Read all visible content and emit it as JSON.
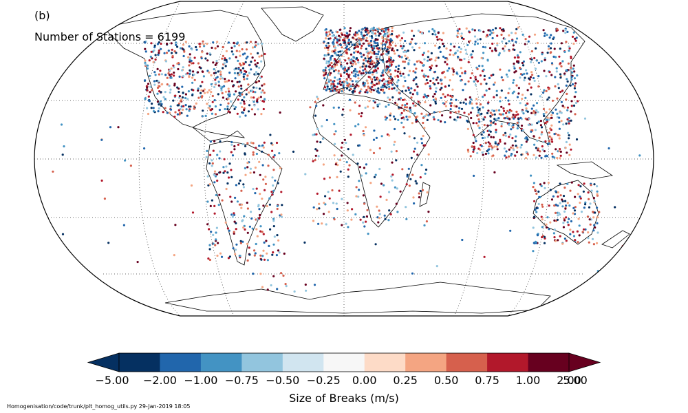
{
  "map": {
    "panel_label": "(b)",
    "station_count_text": "Number of Stations = 6199",
    "projection": "robinson",
    "land_fill": "none",
    "coastline_color": "#000000",
    "graticule_style": "dotted"
  },
  "colorbar": {
    "label": "Size of Breaks (m/s)",
    "ticks": [
      "−5.00",
      "−2.00",
      "−1.00",
      "−0.75",
      "−0.50",
      "−0.25",
      "0.00",
      "0.25",
      "0.50",
      "0.75",
      "1.00",
      "2.00",
      "5.00"
    ],
    "colors": [
      "#053061",
      "#2166ac",
      "#4393c3",
      "#92c5de",
      "#d1e5f0",
      "#f7f7f7",
      "#fddbc7",
      "#f4a582",
      "#d6604d",
      "#b2182b",
      "#67001f"
    ],
    "extend": "both"
  },
  "footer": {
    "text": "Homogenisation/code/trunk/plt_homog_utils.py   29-Jan-2019 18:05"
  }
}
